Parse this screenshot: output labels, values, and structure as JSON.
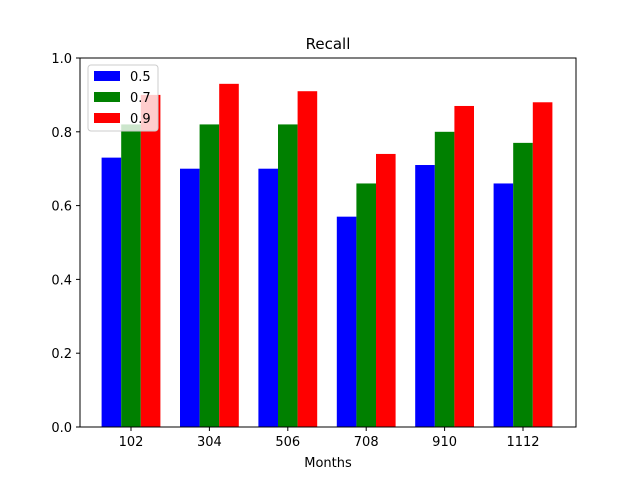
{
  "chart_data": {
    "type": "bar",
    "title": "Recall",
    "xlabel": "Months",
    "ylabel": "",
    "categories": [
      "102",
      "304",
      "506",
      "708",
      "910",
      "1112"
    ],
    "series": [
      {
        "name": "0.5",
        "color": "#0000ff",
        "values": [
          0.73,
          0.7,
          0.7,
          0.57,
          0.71,
          0.66
        ]
      },
      {
        "name": "0.7",
        "color": "#008000",
        "values": [
          0.82,
          0.82,
          0.82,
          0.66,
          0.8,
          0.77
        ]
      },
      {
        "name": "0.9",
        "color": "#ff0000",
        "values": [
          0.9,
          0.93,
          0.91,
          0.74,
          0.87,
          0.88
        ]
      }
    ],
    "ylim": [
      0,
      1.0
    ],
    "yticks": [
      "0.0",
      "0.2",
      "0.4",
      "0.6",
      "0.8",
      "1.0"
    ],
    "grid": false,
    "legend_position": "top-left"
  }
}
